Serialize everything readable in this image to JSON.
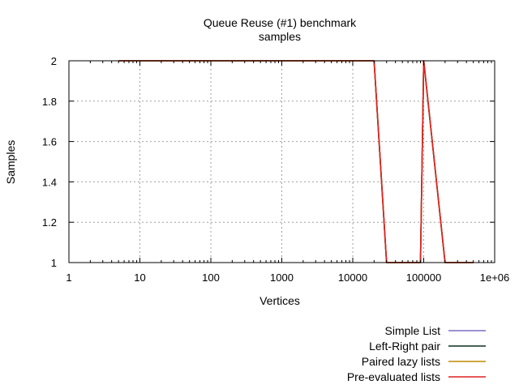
{
  "chart_data": {
    "type": "line",
    "title": "Queue Reuse (#1) benchmark",
    "subtitle": "samples",
    "xlabel": "Vertices",
    "ylabel": "Samples",
    "x_scale": "log",
    "xlim": [
      1,
      1000000
    ],
    "ylim": [
      1,
      2
    ],
    "grid": true,
    "legend_position": "bottom-right",
    "x_ticks": [
      {
        "value": 1,
        "label": "1"
      },
      {
        "value": 10,
        "label": "10"
      },
      {
        "value": 100,
        "label": "100"
      },
      {
        "value": 1000,
        "label": "1000"
      },
      {
        "value": 10000,
        "label": "10000"
      },
      {
        "value": 100000,
        "label": "100000"
      },
      {
        "value": 1000000,
        "label": "1e+06"
      }
    ],
    "y_ticks": [
      {
        "value": 1,
        "label": "1"
      },
      {
        "value": 1.2,
        "label": "1.2"
      },
      {
        "value": 1.4,
        "label": "1.4"
      },
      {
        "value": 1.6,
        "label": "1.6"
      },
      {
        "value": 1.8,
        "label": "1.8"
      },
      {
        "value": 2,
        "label": "2"
      }
    ],
    "series": [
      {
        "name": "Simple List",
        "color": "#7b6fc4",
        "points": [
          [
            5,
            2
          ],
          [
            20000,
            2
          ],
          [
            30000,
            1
          ],
          [
            90000,
            1
          ],
          [
            100000,
            2
          ],
          [
            200000,
            1
          ],
          [
            500000,
            1
          ]
        ]
      },
      {
        "name": "Left-Right pair",
        "color": "#0f2f1f",
        "points": [
          [
            5,
            2
          ],
          [
            20000,
            2
          ],
          [
            30000,
            1
          ],
          [
            90000,
            1
          ],
          [
            100000,
            2
          ],
          [
            200000,
            1
          ],
          [
            500000,
            1
          ]
        ]
      },
      {
        "name": "Paired lazy lists",
        "color": "#c08a00",
        "points": [
          [
            5,
            2
          ],
          [
            20000,
            2
          ],
          [
            30000,
            1
          ],
          [
            90000,
            1
          ],
          [
            100000,
            2
          ],
          [
            200000,
            1
          ],
          [
            500000,
            1
          ]
        ]
      },
      {
        "name": "Pre-evaluated lists",
        "color": "#e02020",
        "points": [
          [
            5,
            2
          ],
          [
            20000,
            2
          ],
          [
            30000,
            1
          ],
          [
            90000,
            1
          ],
          [
            100000,
            2
          ],
          [
            200000,
            1
          ],
          [
            500000,
            1
          ]
        ]
      }
    ]
  }
}
